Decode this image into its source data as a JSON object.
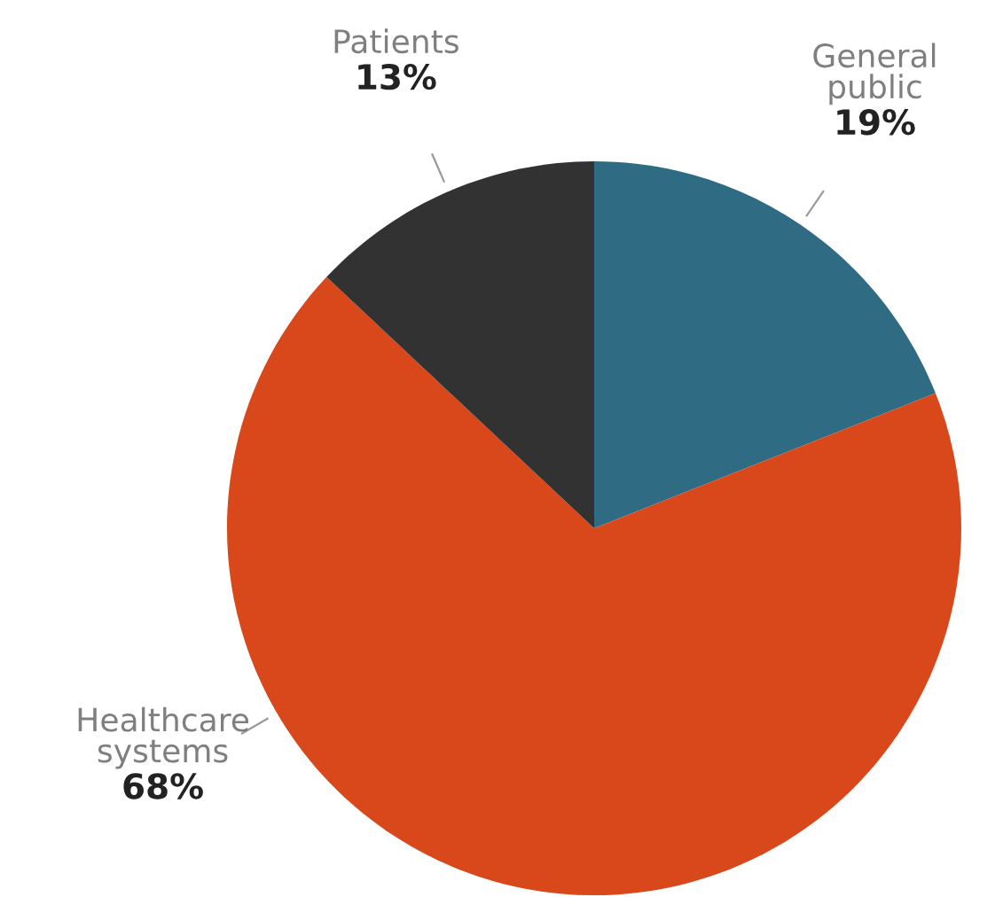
{
  "chart_data": {
    "type": "pie",
    "categories": [
      "General\npublic",
      "Healthcare\nsystems",
      "Patients"
    ],
    "values": [
      19,
      68,
      13
    ],
    "colors": [
      "#2f6c83",
      "#d8481b",
      "#333233"
    ],
    "value_labels": [
      "19%",
      "68%",
      "13%"
    ],
    "legend": false
  }
}
